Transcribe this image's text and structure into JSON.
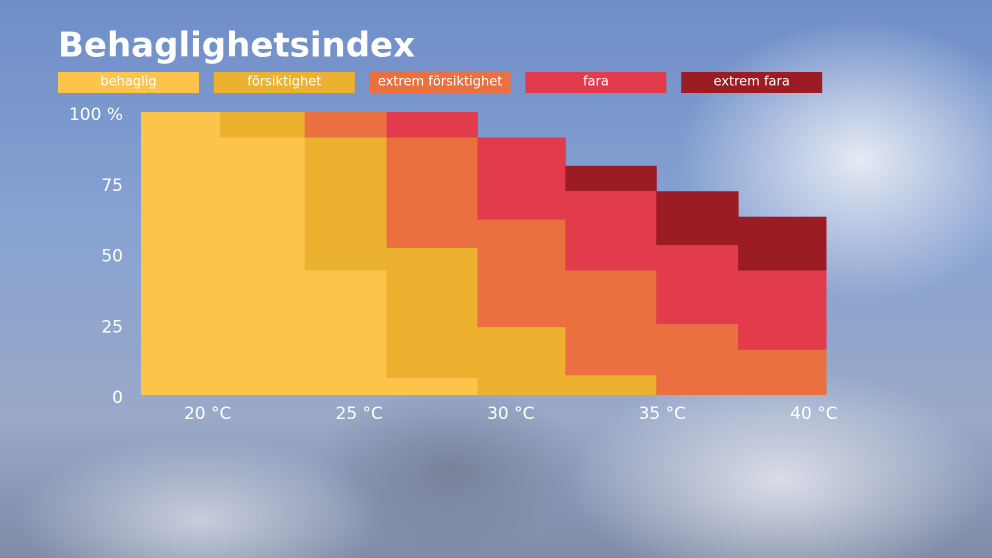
{
  "chart_data": {
    "type": "histogram",
    "stacked": true,
    "title": "Behaglighetsindex",
    "bins": [
      17.8,
      20.4,
      23.2,
      25.9,
      28.9,
      31.8,
      34.8,
      37.5,
      40.4
    ],
    "series": [
      {
        "name": "behaglig",
        "color": "#fdc44c",
        "values": [
          100,
          91,
          44,
          6,
          0,
          0,
          0,
          0
        ]
      },
      {
        "name": "försiktighet",
        "color": "#ebb12f",
        "values": [
          0,
          9,
          47,
          46,
          24,
          7,
          0,
          0
        ]
      },
      {
        "name": "extrem försiktighet",
        "color": "#ea7040",
        "values": [
          0,
          0,
          9,
          39,
          38,
          37,
          25,
          16
        ]
      },
      {
        "name": "fara",
        "color": "#e23b4c",
        "values": [
          0,
          0,
          0,
          9,
          29,
          28,
          28,
          28
        ]
      },
      {
        "name": "extrem fara",
        "color": "#9b1c22",
        "values": [
          0,
          0,
          0,
          0,
          0,
          9,
          19,
          19
        ]
      }
    ],
    "xlim": [
      17.8,
      40.4
    ],
    "xticks": [
      {
        "value": 20,
        "label": "20 °C"
      },
      {
        "value": 25,
        "label": "25 °C"
      },
      {
        "value": 30,
        "label": "30 °C"
      },
      {
        "value": 35,
        "label": "35 °C"
      },
      {
        "value": 40,
        "label": "40 °C"
      }
    ],
    "ylim": [
      0,
      100
    ],
    "yticks": [
      0,
      25,
      50,
      75,
      {
        "value": 100,
        "label": "100 %"
      }
    ],
    "legend": "top"
  }
}
